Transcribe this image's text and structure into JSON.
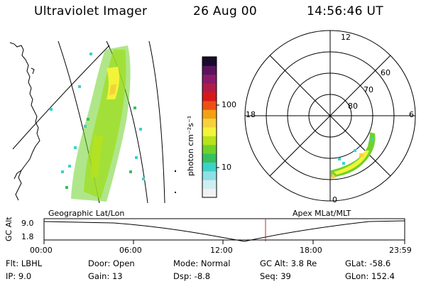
{
  "header": {
    "instrument": "Ultraviolet Imager",
    "date": "26 Aug 00",
    "time": "14:56:46 UT"
  },
  "colorbar": {
    "unit_label": "photon cm⁻²s⁻¹",
    "ticks": [
      "100",
      "10"
    ],
    "scale": "log",
    "colors": [
      "#f2f2f2",
      "#cfeef2",
      "#8fe0e6",
      "#3cd2c8",
      "#37c060",
      "#6fd22a",
      "#b7e21c",
      "#f3f33a",
      "#f4d23a",
      "#f4a014",
      "#ee5014",
      "#d81818",
      "#b01c4a",
      "#8a1a6a",
      "#5a145e",
      "#1a0a2a"
    ]
  },
  "left_panel": {
    "label": "Geographic Lat/Lon"
  },
  "right_panel": {
    "label": "Apex MLat/MLT",
    "mlt_labels": {
      "top": "12",
      "left": "18",
      "right": "6",
      "bottom": "0"
    },
    "lat_labels": [
      "60",
      "70",
      "80"
    ]
  },
  "altitude_plot": {
    "ylabel": "GC Alt",
    "yticks": [
      "9.0",
      "1.8"
    ],
    "xticks": [
      "00:00",
      "06:00",
      "12:00",
      "18:00",
      "23:59"
    ],
    "marker_time": "14:56:46",
    "marker_color": "#cc2222"
  },
  "footer": {
    "col1": [
      "Flt: LBHL",
      "IP:  9.0"
    ],
    "col2": [
      "Door: Open",
      "Gain: 13"
    ],
    "col3": [
      "Mode: Normal",
      "Dsp:   -8.8"
    ],
    "col4": [
      "GC Alt: 3.8 Re",
      "Seq: 39"
    ],
    "col5": [
      "GLat: -58.6",
      "GLon: 152.4"
    ]
  }
}
